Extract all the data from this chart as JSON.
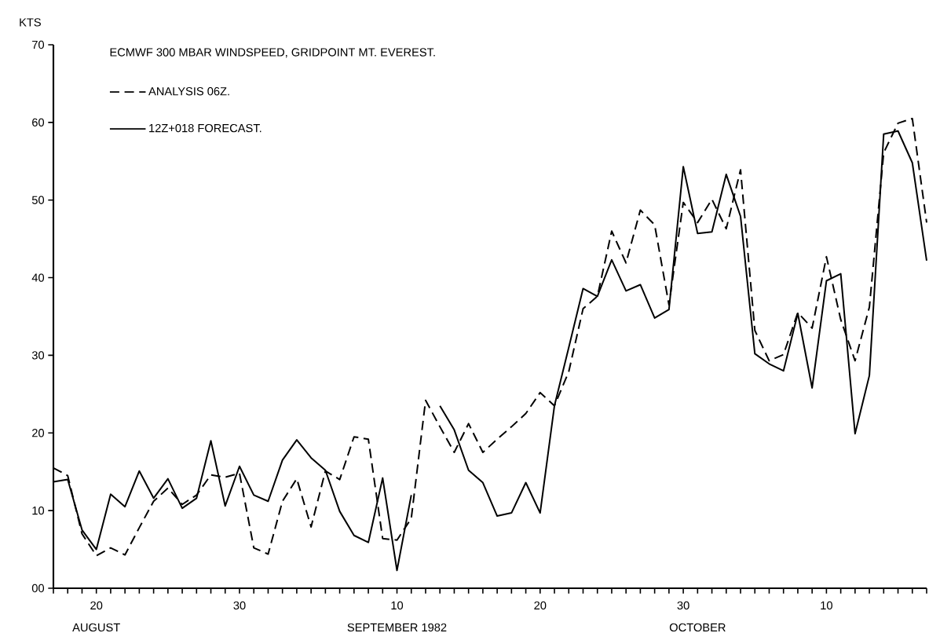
{
  "chart_data": {
    "type": "line",
    "title": "ECMWF 300 MBAR WINDSPEED, GRIDPOINT MT. EVEREST.",
    "ylabel": "KTS",
    "annotations": [
      "AUGUST",
      "SEPTEMBER 1982",
      "OCTOBER"
    ],
    "legend": "top left",
    "x": [
      "1982-08-17",
      "1982-08-18",
      "1982-08-19",
      "1982-08-20",
      "1982-08-21",
      "1982-08-22",
      "1982-08-23",
      "1982-08-24",
      "1982-08-25",
      "1982-08-26",
      "1982-08-27",
      "1982-08-28",
      "1982-08-29",
      "1982-08-30",
      "1982-08-31",
      "1982-09-01",
      "1982-09-02",
      "1982-09-03",
      "1982-09-04",
      "1982-09-05",
      "1982-09-06",
      "1982-09-07",
      "1982-09-08",
      "1982-09-09",
      "1982-09-10",
      "1982-09-11",
      "1982-09-12",
      "1982-09-13",
      "1982-09-14",
      "1982-09-15",
      "1982-09-16",
      "1982-09-17",
      "1982-09-18",
      "1982-09-19",
      "1982-09-20",
      "1982-09-21",
      "1982-09-22",
      "1982-09-23",
      "1982-09-24",
      "1982-09-25",
      "1982-09-26",
      "1982-09-27",
      "1982-09-28",
      "1982-09-29",
      "1982-09-30",
      "1982-10-01",
      "1982-10-02",
      "1982-10-03",
      "1982-10-04",
      "1982-10-05",
      "1982-10-06",
      "1982-10-07",
      "1982-10-08",
      "1982-10-09",
      "1982-10-10",
      "1982-10-11",
      "1982-10-12",
      "1982-10-13",
      "1982-10-14",
      "1982-10-15",
      "1982-10-16",
      "1982-10-17"
    ],
    "series": [
      {
        "name": "ANALYSIS 06Z.",
        "color": "#000000",
        "line_style": "dashed",
        "values": [
          15.5,
          14.5,
          7.0,
          4.2,
          5.2,
          4.3,
          7.8,
          11.2,
          12.9,
          10.8,
          12.0,
          14.6,
          14.3,
          14.8,
          5.2,
          4.4,
          11.2,
          14.1,
          7.9,
          15.1,
          14.0,
          19.5,
          19.2,
          6.4,
          6.2,
          9.0,
          24.2,
          20.8,
          17.5,
          21.2,
          17.5,
          19.2,
          20.8,
          22.5,
          25.2,
          23.5,
          27.9,
          36.0,
          37.6,
          46.0,
          41.9,
          48.7,
          46.8,
          36.5,
          49.7,
          47.1,
          50.1,
          46.3,
          53.9,
          33.2,
          29.3,
          30.1,
          35.5,
          33.5,
          42.7,
          34.6,
          29.3,
          36.2,
          56.1,
          59.9,
          60.5,
          47.1
        ]
      },
      {
        "name": "12Z+018 FORECAST.",
        "color": "#000000",
        "line_style": "solid",
        "values": [
          13.7,
          14.0,
          7.5,
          5.0,
          12.1,
          10.5,
          15.1,
          11.6,
          14.1,
          10.3,
          11.6,
          19.0,
          10.6,
          15.7,
          12.0,
          11.2,
          16.5,
          19.1,
          16.8,
          15.2,
          9.9,
          6.8,
          5.9,
          14.2,
          2.3,
          12.0,
          null,
          23.5,
          20.4,
          15.2,
          13.6,
          9.3,
          9.7,
          13.6,
          9.7,
          23.5,
          31.0,
          38.6,
          37.6,
          42.3,
          38.3,
          39.1,
          34.8,
          35.9,
          54.3,
          45.7,
          45.9,
          53.3,
          47.9,
          30.2,
          28.9,
          28.0,
          35.4,
          25.8,
          39.6,
          40.5,
          19.9,
          27.4,
          58.5,
          58.9,
          54.8,
          42.2
        ]
      }
    ],
    "xlim": [
      "1982-08-17",
      "1982-10-17"
    ],
    "xticks": [
      {
        "value": "1982-08-17",
        "label": null
      },
      {
        "value": "1982-08-18",
        "label": null
      },
      {
        "value": "1982-08-19",
        "label": null
      },
      {
        "value": "1982-08-20",
        "label": "20"
      },
      {
        "value": "1982-08-21",
        "label": null
      },
      {
        "value": "1982-08-22",
        "label": null
      },
      {
        "value": "1982-08-23",
        "label": null
      },
      {
        "value": "1982-08-24",
        "label": null
      },
      {
        "value": "1982-08-25",
        "label": null
      },
      {
        "value": "1982-08-26",
        "label": null
      },
      {
        "value": "1982-08-27",
        "label": null
      },
      {
        "value": "1982-08-28",
        "label": null
      },
      {
        "value": "1982-08-29",
        "label": null
      },
      {
        "value": "1982-08-30",
        "label": "30"
      },
      {
        "value": "1982-08-31",
        "label": null
      },
      {
        "value": "1982-09-01",
        "label": null
      },
      {
        "value": "1982-09-02",
        "label": null
      },
      {
        "value": "1982-09-03",
        "label": null
      },
      {
        "value": "1982-09-04",
        "label": null
      },
      {
        "value": "1982-09-05",
        "label": null
      },
      {
        "value": "1982-09-06",
        "label": null
      },
      {
        "value": "1982-09-07",
        "label": null
      },
      {
        "value": "1982-09-08",
        "label": null
      },
      {
        "value": "1982-09-09",
        "label": null
      },
      {
        "value": "1982-09-10",
        "label": "10"
      },
      {
        "value": "1982-09-11",
        "label": null
      },
      {
        "value": "1982-09-12",
        "label": null
      },
      {
        "value": "1982-09-13",
        "label": null
      },
      {
        "value": "1982-09-14",
        "label": null
      },
      {
        "value": "1982-09-15",
        "label": null
      },
      {
        "value": "1982-09-16",
        "label": null
      },
      {
        "value": "1982-09-17",
        "label": null
      },
      {
        "value": "1982-09-18",
        "label": null
      },
      {
        "value": "1982-09-19",
        "label": null
      },
      {
        "value": "1982-09-20",
        "label": "20"
      },
      {
        "value": "1982-09-21",
        "label": null
      },
      {
        "value": "1982-09-22",
        "label": null
      },
      {
        "value": "1982-09-23",
        "label": null
      },
      {
        "value": "1982-09-24",
        "label": null
      },
      {
        "value": "1982-09-25",
        "label": null
      },
      {
        "value": "1982-09-26",
        "label": null
      },
      {
        "value": "1982-09-27",
        "label": null
      },
      {
        "value": "1982-09-28",
        "label": null
      },
      {
        "value": "1982-09-29",
        "label": null
      },
      {
        "value": "1982-09-30",
        "label": "30"
      },
      {
        "value": "1982-10-01",
        "label": null
      },
      {
        "value": "1982-10-02",
        "label": null
      },
      {
        "value": "1982-10-03",
        "label": null
      },
      {
        "value": "1982-10-04",
        "label": null
      },
      {
        "value": "1982-10-05",
        "label": null
      },
      {
        "value": "1982-10-06",
        "label": null
      },
      {
        "value": "1982-10-07",
        "label": null
      },
      {
        "value": "1982-10-08",
        "label": null
      },
      {
        "value": "1982-10-09",
        "label": null
      },
      {
        "value": "1982-10-10",
        "label": "10"
      },
      {
        "value": "1982-10-11",
        "label": null
      },
      {
        "value": "1982-10-12",
        "label": null
      },
      {
        "value": "1982-10-13",
        "label": null
      },
      {
        "value": "1982-10-14",
        "label": null
      },
      {
        "value": "1982-10-15",
        "label": null
      },
      {
        "value": "1982-10-16",
        "label": null
      },
      {
        "value": "1982-10-17",
        "label": null
      }
    ],
    "ylim": [
      0,
      70
    ],
    "yticks": [
      {
        "value": 0,
        "label": "00"
      },
      10,
      20,
      30,
      40,
      50,
      60,
      70
    ]
  }
}
